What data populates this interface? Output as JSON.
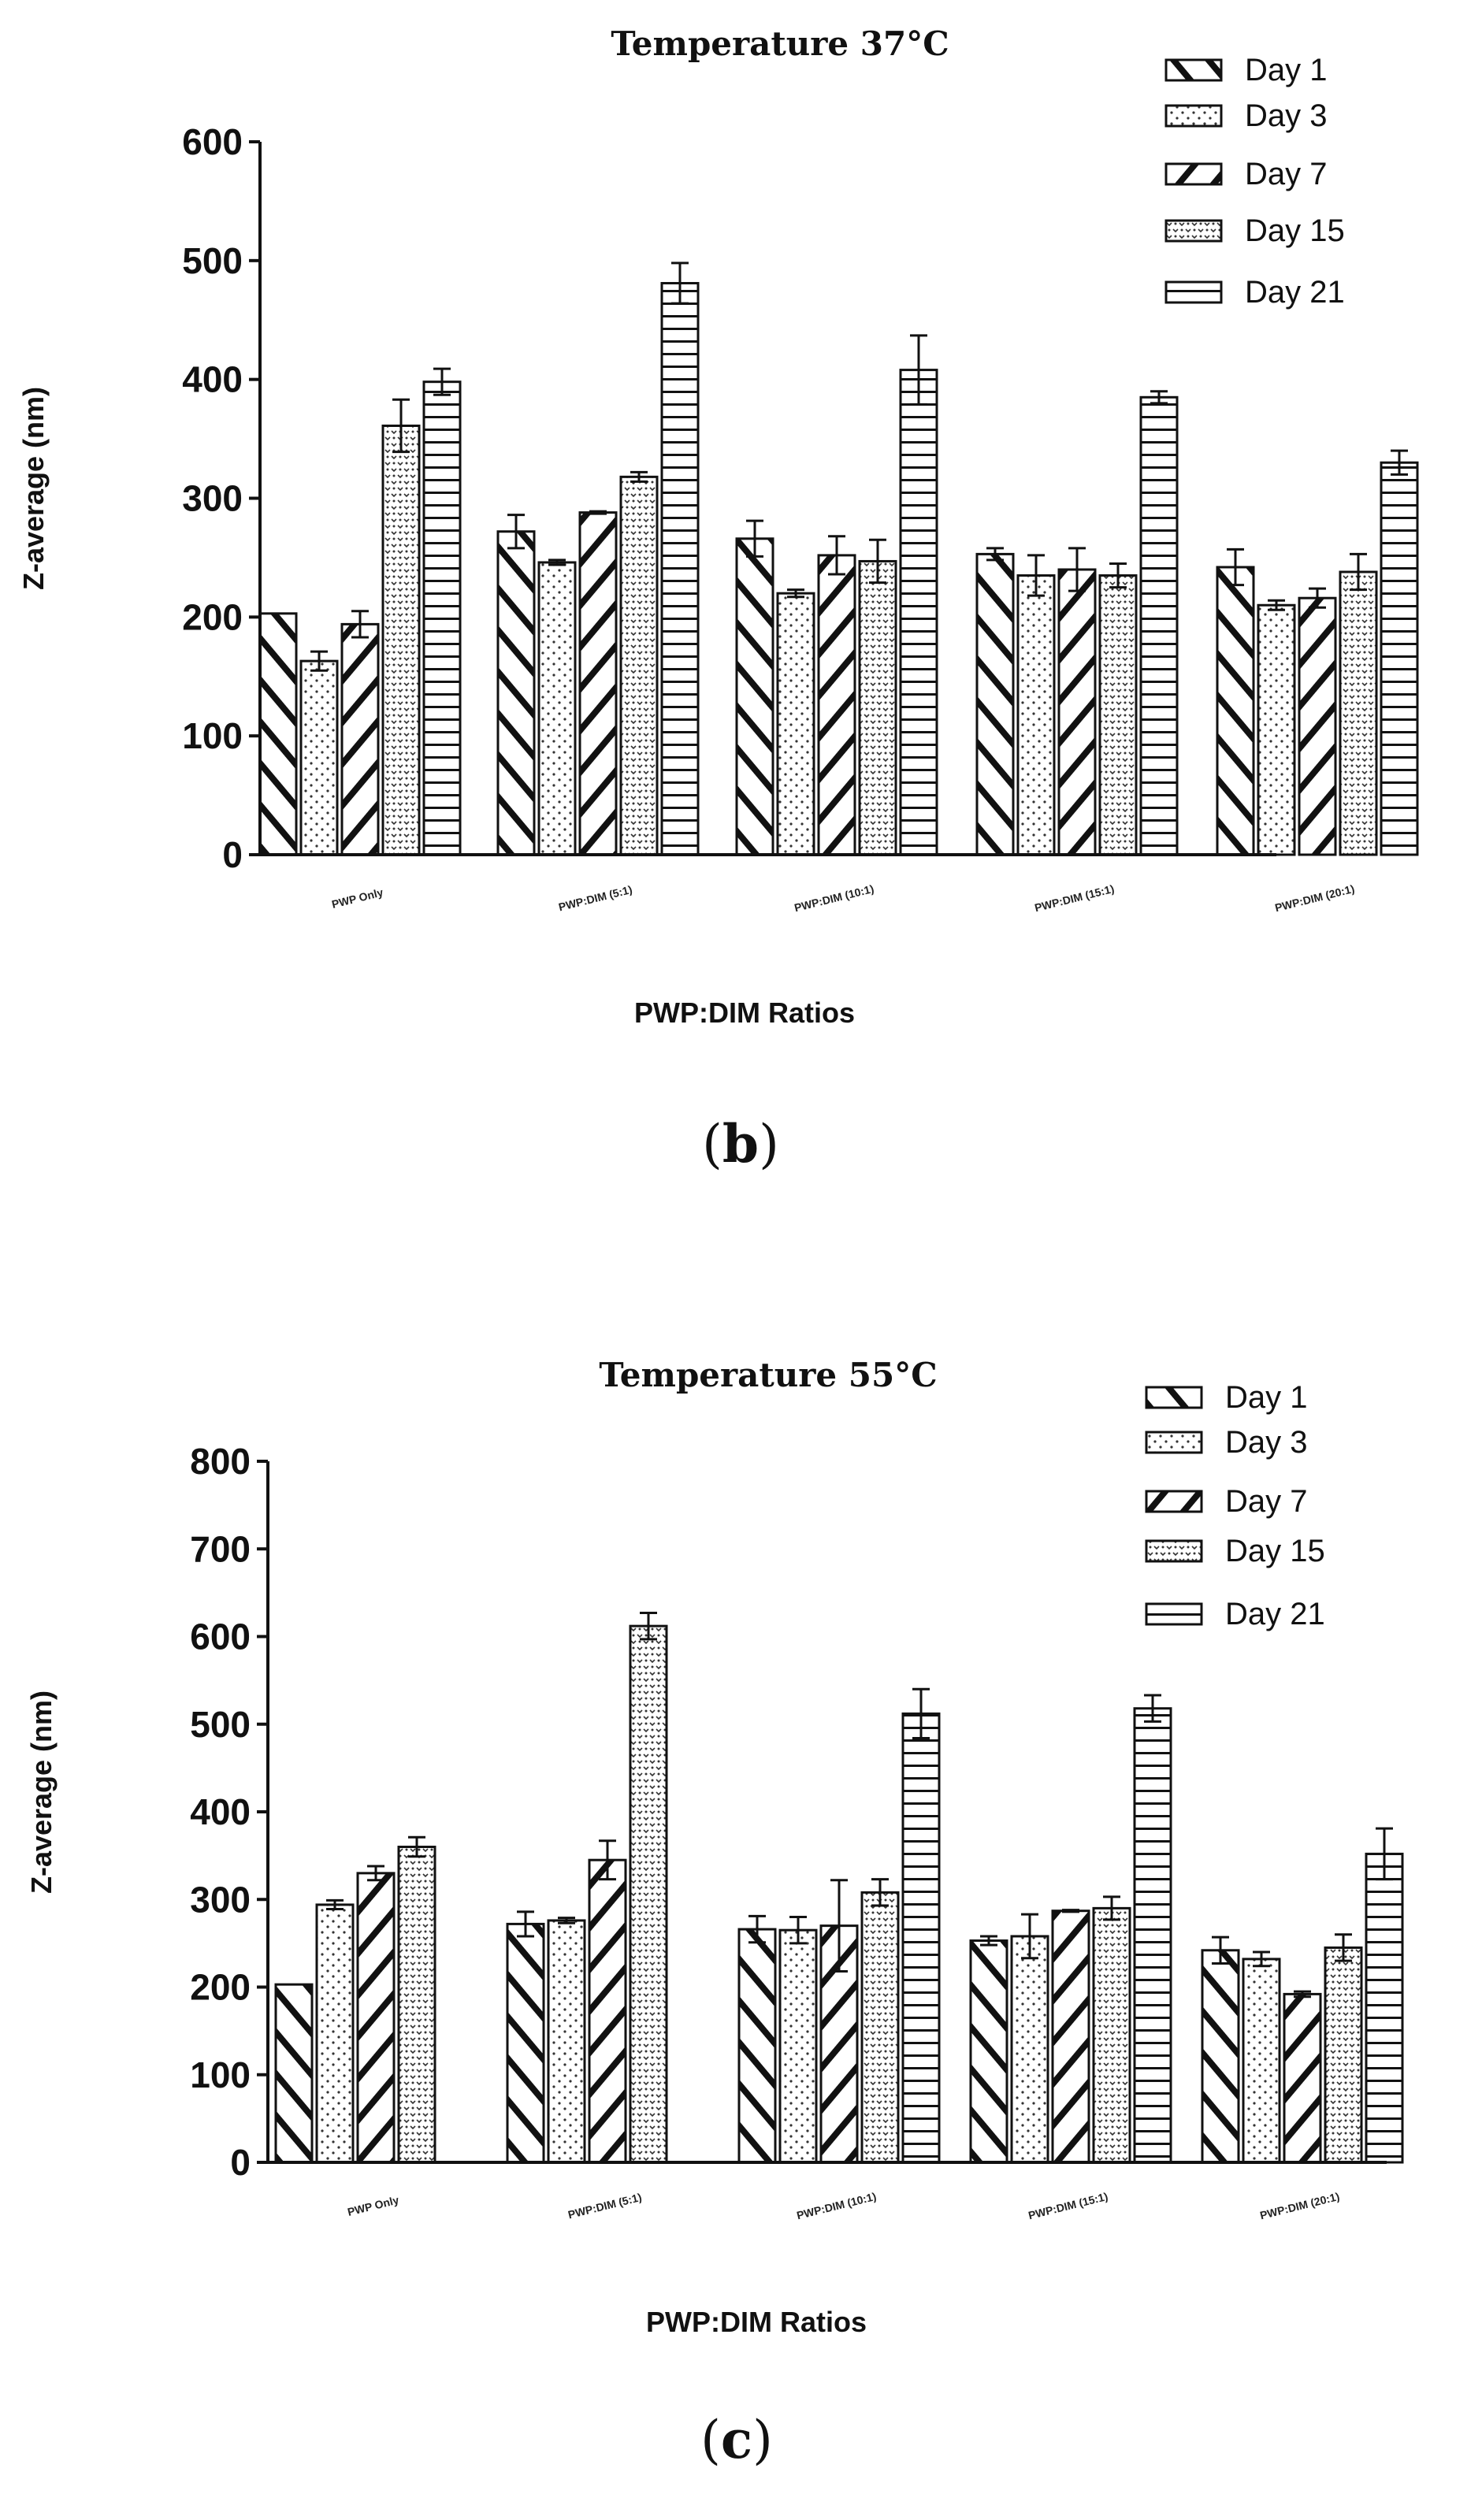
{
  "figure_parts": [
    {
      "letter": "b"
    },
    {
      "letter": "c"
    }
  ],
  "chart_data": [
    {
      "type": "bar",
      "title": "Temperature 37°C",
      "xlabel": "PWP:DIM Ratios",
      "ylabel": "Z-average (nm)",
      "ylim": [
        0,
        600
      ],
      "yticks": [
        0,
        100,
        200,
        300,
        400,
        500,
        600
      ],
      "categories": [
        "PWP Only",
        "PWP:DIM (5:1)",
        "PWP:DIM (10:1)",
        "PWP:DIM (15:1)",
        "PWP:DIM (20:1)"
      ],
      "legend_position": "top-right",
      "series": [
        {
          "name": "Day 1",
          "pattern": "back-diagonal",
          "values": [
            203,
            272,
            266,
            253,
            242
          ],
          "errors": [
            0,
            14,
            15,
            5,
            15
          ]
        },
        {
          "name": "Day 3",
          "pattern": "dots",
          "values": [
            163,
            246,
            220,
            235,
            210
          ],
          "errors": [
            8,
            2,
            3,
            17,
            4
          ]
        },
        {
          "name": "Day 7",
          "pattern": "forward-diagonal",
          "values": [
            194,
            288,
            252,
            240,
            216
          ],
          "errors": [
            11,
            1,
            16,
            18,
            8
          ]
        },
        {
          "name": "Day 15",
          "pattern": "speckle",
          "values": [
            361,
            318,
            247,
            235,
            238
          ],
          "errors": [
            22,
            4,
            18,
            10,
            15
          ]
        },
        {
          "name": "Day 21",
          "pattern": "horizontal",
          "values": [
            398,
            481,
            408,
            385,
            330
          ],
          "errors": [
            11,
            17,
            29,
            5,
            10
          ]
        }
      ]
    },
    {
      "type": "bar",
      "title": "Temperature 55°C",
      "xlabel": "PWP:DIM Ratios",
      "ylabel": "Z-average (nm)",
      "ylim": [
        0,
        800
      ],
      "yticks": [
        0,
        100,
        200,
        300,
        400,
        500,
        600,
        700,
        800
      ],
      "categories": [
        "PWP Only",
        "PWP:DIM (5:1)",
        "PWP:DIM (10:1)",
        "PWP:DIM (15:1)",
        "PWP:DIM (20:1)"
      ],
      "legend_position": "top-right",
      "series": [
        {
          "name": "Day 1",
          "pattern": "back-diagonal",
          "values": [
            203,
            272,
            266,
            253,
            242
          ],
          "errors": [
            0,
            14,
            15,
            5,
            15
          ]
        },
        {
          "name": "Day 3",
          "pattern": "dots",
          "values": [
            294,
            276,
            265,
            258,
            232
          ],
          "errors": [
            5,
            3,
            15,
            25,
            8
          ]
        },
        {
          "name": "Day 7",
          "pattern": "forward-diagonal",
          "values": [
            330,
            345,
            270,
            287,
            192
          ],
          "errors": [
            8,
            22,
            52,
            1,
            3
          ]
        },
        {
          "name": "Day 15",
          "pattern": "speckle",
          "values": [
            360,
            612,
            308,
            290,
            245
          ],
          "errors": [
            11,
            15,
            15,
            13,
            15
          ]
        },
        {
          "name": "Day 21",
          "pattern": "horizontal",
          "values": [
            null,
            null,
            512,
            518,
            352
          ],
          "errors": [
            null,
            null,
            28,
            15,
            29
          ]
        }
      ]
    }
  ]
}
